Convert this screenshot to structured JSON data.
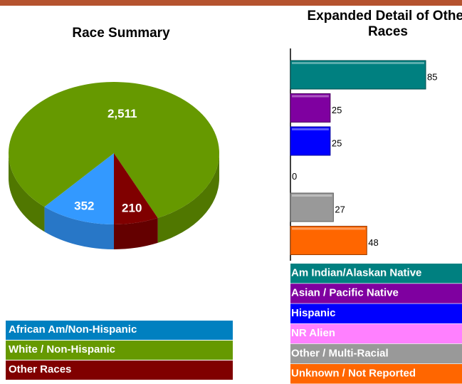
{
  "chart_data": [
    {
      "type": "pie",
      "title": "Race Summary",
      "categories": [
        "African Am/Non-Hispanic",
        "White / Non-Hispanic",
        "Other Races"
      ],
      "values": [
        352,
        2511,
        210
      ],
      "value_labels": [
        "352",
        "2,511",
        "210"
      ],
      "colors": [
        "#3399ff",
        "#669900",
        "#800000"
      ],
      "legend_colors": [
        "#0080c0",
        "#669900",
        "#800000"
      ]
    },
    {
      "type": "hbar",
      "title": "Expanded Detail of Other Races",
      "categories": [
        "Am Indian/Alaskan Native",
        "Asian / Pacific Native",
        "Hispanic",
        "NR Alien",
        "Other / Multi-Racial",
        "Unknown / Not Reported"
      ],
      "values": [
        85,
        25,
        25,
        0,
        27,
        48
      ],
      "colors": [
        "#008080",
        "#7f00a0",
        "#0000ff",
        "#ff80ff",
        "#999999",
        "#ff6600"
      ]
    }
  ]
}
